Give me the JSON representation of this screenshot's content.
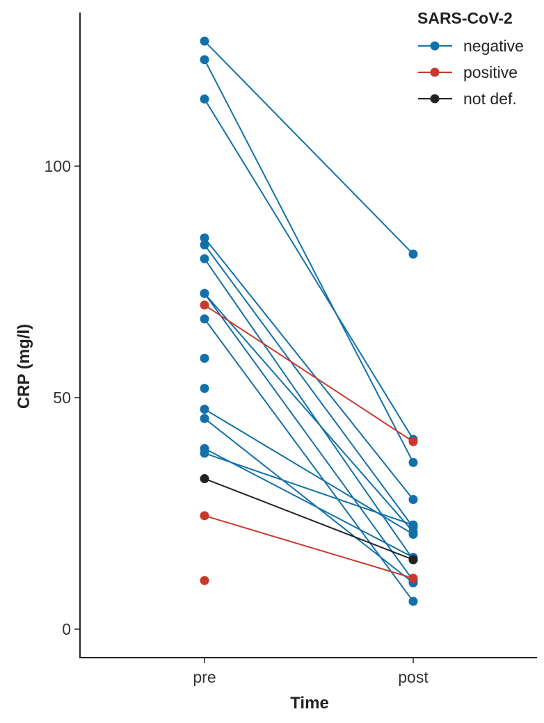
{
  "chart_data": {
    "type": "line",
    "xlabel": "Time",
    "ylabel": "CRP (mg/l)",
    "categories": [
      "pre",
      "post"
    ],
    "ylim": [
      -6,
      134
    ],
    "yticks": [
      0,
      50,
      100
    ],
    "grid": false,
    "legend": {
      "title": "SARS-CoV-2",
      "placement": "top-right",
      "entries": [
        {
          "key": "negative",
          "label": "negative",
          "color": "#1170AA"
        },
        {
          "key": "positive",
          "label": "positive",
          "color": "#C8392B"
        },
        {
          "key": "notdef",
          "label": "not def.",
          "color": "#222222"
        }
      ]
    },
    "pairs": [
      {
        "group": "negative",
        "pre": 127,
        "post": 81
      },
      {
        "group": "negative",
        "pre": 123,
        "post": 36
      },
      {
        "group": "negative",
        "pre": 114.5,
        "post": 41
      },
      {
        "group": "negative",
        "pre": 84.5,
        "post": 28
      },
      {
        "group": "negative",
        "pre": 83,
        "post": 22
      },
      {
        "group": "negative",
        "pre": 80,
        "post": 15
      },
      {
        "group": "negative",
        "pre": 72.5,
        "post": 21
      },
      {
        "group": "negative",
        "pre": 72.5,
        "post": 10.5
      },
      {
        "group": "negative",
        "pre": 67,
        "post": 6
      },
      {
        "group": "negative",
        "pre": 47.5,
        "post": 20.5
      },
      {
        "group": "negative",
        "pre": 45.5,
        "post": 10
      },
      {
        "group": "negative",
        "pre": 39,
        "post": 15.5
      },
      {
        "group": "negative",
        "pre": 38,
        "post": 22.5
      },
      {
        "group": "positive",
        "pre": 70,
        "post": 40.5
      },
      {
        "group": "positive",
        "pre": 24.5,
        "post": 11
      },
      {
        "group": "notdef",
        "pre": 32.5,
        "post": 15
      }
    ],
    "unpaired": [
      {
        "group": "negative",
        "time": "pre",
        "value": 58.5
      },
      {
        "group": "negative",
        "time": "pre",
        "value": 52
      },
      {
        "group": "positive",
        "time": "pre",
        "value": 10.5
      }
    ]
  }
}
